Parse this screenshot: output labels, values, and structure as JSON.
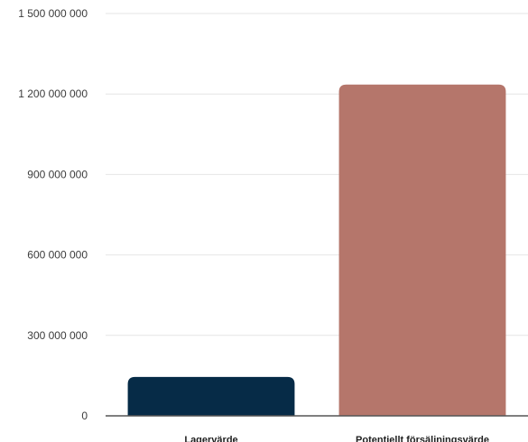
{
  "chart_data": {
    "type": "bar",
    "categories": [
      "Lagervärde",
      "Potentiellt försäljningsvärde"
    ],
    "values": [
      145000000,
      1235000000
    ],
    "colors": [
      "#062b47",
      "#b5766b"
    ],
    "ylim": [
      0,
      1500000000
    ],
    "yticks": [
      0,
      300000000,
      600000000,
      900000000,
      1200000000,
      1500000000
    ],
    "ytick_labels": [
      "0",
      "300 000 000",
      "600 000 000",
      "900 000 000",
      "1 200 000 000",
      "1 500 000 000"
    ],
    "grid": true,
    "title": "",
    "xlabel": "",
    "ylabel": ""
  }
}
